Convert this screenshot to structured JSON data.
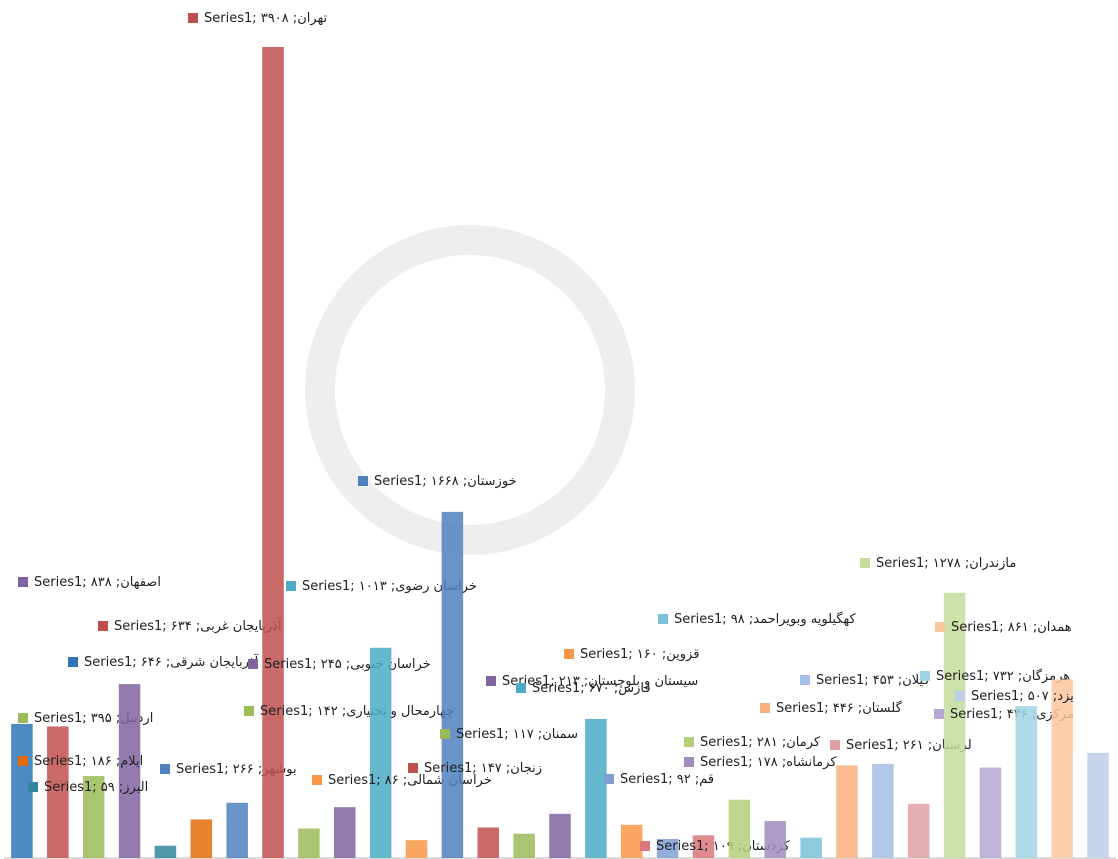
{
  "chart_data": {
    "type": "bar",
    "categories": [
      "آذربایجان شرقی",
      "آذربایجان غربی",
      "اردبیل",
      "اصفهان",
      "البرز",
      "ایلام",
      "بوشهر",
      "تهران",
      "چهارمحال و بختیاری",
      "خراسان جنوبی",
      "خراسان رضوی",
      "خراسان شمالی",
      "خوزستان",
      "زنجان",
      "سمنان",
      "سیستان و بلوچستان",
      "فارس",
      "قزوین",
      "قم",
      "کردستان",
      "کرمان",
      "کرمانشاه",
      "کهگیلویه وبویراحمد",
      "گلستان",
      "گیلان",
      "لرستان",
      "مازندران",
      "مرکزی",
      "هرمزگان",
      "همدان",
      "یزد"
    ],
    "series": [
      {
        "name": "Series1",
        "colors": [
          "#2e75b6",
          "#c0504d",
          "#9bbb59",
          "#8064a2",
          "#31859c",
          "#e46c0a",
          "#4f81bd",
          "#c0504d",
          "#9bbb59",
          "#8064a2",
          "#4bacc6",
          "#f79646",
          "#4f81bd",
          "#c0504d",
          "#9bbb59",
          "#8064a2",
          "#4bacc6",
          "#f79646",
          "#7f9fd4",
          "#d9777a",
          "#b3cf7a",
          "#a08bc0",
          "#78c1d6",
          "#f9b07a",
          "#a6bde5",
          "#e0a0a2",
          "#c6dc9c",
          "#b6a7d1",
          "#9ed3e3",
          "#fbc59d",
          "#bccde9"
        ],
        "values": [
          646,
          634,
          395,
          838,
          59,
          186,
          266,
          3908,
          142,
          245,
          1013,
          86,
          1668,
          147,
          117,
          213,
          670,
          160,
          92,
          109,
          281,
          178,
          98,
          446,
          453,
          261,
          1278,
          436,
          732,
          861,
          507
        ],
        "value_labels": [
          "۶۴۶",
          "۶۳۴",
          "۳۹۵",
          "۸۳۸",
          "۵۹",
          "۱۸۶",
          "۲۶۶",
          "۳۹۰۸",
          "۱۴۲",
          "۲۴۵",
          "۱۰۱۳",
          "۸۶",
          "۱۶۶۸",
          "۱۴۷",
          "۱۱۷",
          "۲۱۳",
          "۶۷۰",
          "۱۶۰",
          "۹۲",
          "۱۰۹",
          "۲۸۱",
          "۱۷۸",
          "۹۸",
          "۴۴۶",
          "۴۵۳",
          "۲۶۱",
          "۱۲۷۸",
          "۴۳۶",
          "۷۳۲",
          "۸۶۱",
          "۵۰۷"
        ]
      }
    ],
    "ylim": [
      0,
      3908
    ]
  }
}
